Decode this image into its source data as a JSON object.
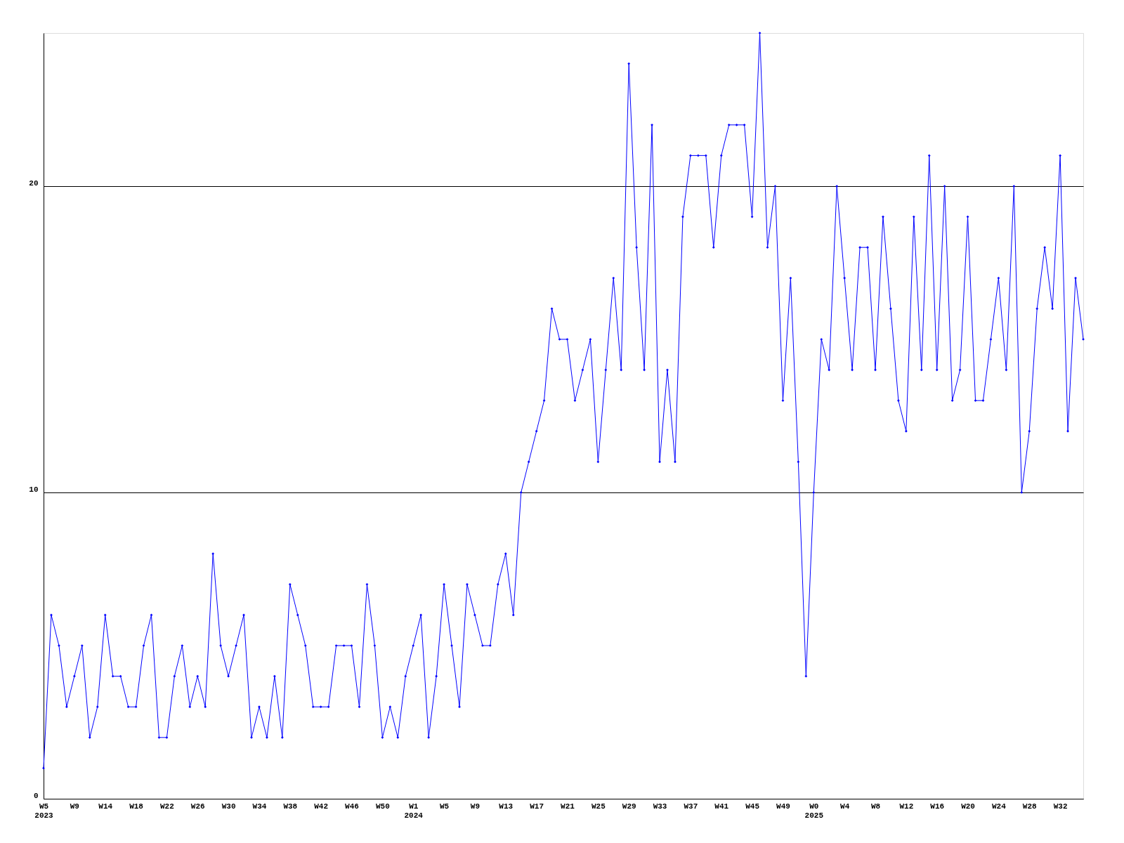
{
  "chart_data": {
    "type": "line",
    "categories": [
      "W5\n2023",
      null,
      null,
      null,
      "W9",
      null,
      null,
      null,
      "W14",
      null,
      null,
      null,
      "W18",
      null,
      null,
      null,
      "W22",
      null,
      null,
      null,
      "W26",
      null,
      null,
      null,
      "W30",
      null,
      null,
      null,
      "W34",
      null,
      null,
      null,
      "W38",
      null,
      null,
      null,
      "W42",
      null,
      null,
      null,
      "W46",
      null,
      null,
      null,
      "W50",
      null,
      null,
      null,
      "W1\n2024",
      null,
      null,
      null,
      "W5",
      null,
      null,
      null,
      "W9",
      null,
      null,
      null,
      "W13",
      null,
      null,
      null,
      "W17",
      null,
      null,
      null,
      "W21",
      null,
      null,
      null,
      "W25",
      null,
      null,
      null,
      "W29",
      null,
      null,
      null,
      "W33",
      null,
      null,
      null,
      "W37",
      null,
      null,
      null,
      "W41",
      null,
      null,
      null,
      "W45",
      null,
      null,
      null,
      "W49",
      null,
      null,
      null,
      "W0\n2025",
      null,
      null,
      null,
      "W4",
      null,
      null,
      null,
      "W8",
      null,
      null,
      null,
      "W12",
      null,
      null,
      null,
      "W16",
      null,
      null,
      null,
      "W20",
      null,
      null,
      null,
      "W24",
      null,
      null,
      null,
      "W28",
      null,
      null,
      null,
      "W32",
      null,
      null,
      null
    ],
    "series": [
      {
        "color": "#0000ff",
        "values": [
          1,
          6,
          5,
          3,
          4,
          5,
          2,
          3,
          6,
          4,
          4,
          3,
          3,
          5,
          6,
          2,
          2,
          4,
          5,
          3,
          4,
          3,
          8,
          5,
          4,
          5,
          6,
          2,
          3,
          2,
          4,
          2,
          7,
          6,
          5,
          3,
          3,
          3,
          5,
          5,
          5,
          3,
          7,
          5,
          2,
          3,
          2,
          4,
          5,
          6,
          2,
          4,
          7,
          5,
          3,
          7,
          6,
          5,
          5,
          7,
          8,
          6,
          10,
          11,
          12,
          13,
          16,
          15,
          15,
          13,
          14,
          15,
          11,
          14,
          17,
          14,
          24,
          18,
          14,
          22,
          11,
          14,
          11,
          19,
          21,
          21,
          21,
          18,
          21,
          22,
          22,
          22,
          19,
          25,
          18,
          20,
          13,
          17,
          11,
          4,
          10,
          15,
          14,
          20,
          17,
          14,
          18,
          18,
          14,
          19,
          16,
          13,
          12,
          19,
          14,
          21,
          14,
          20,
          13,
          14,
          19,
          13,
          13,
          15,
          17,
          14,
          20,
          10,
          12,
          16,
          18,
          16,
          21,
          12,
          17,
          15
        ]
      }
    ],
    "ylim": [
      0,
      25
    ],
    "yticks": [
      0,
      10,
      20
    ],
    "grid": "y",
    "marker": "diamond",
    "line_style": "solid"
  }
}
